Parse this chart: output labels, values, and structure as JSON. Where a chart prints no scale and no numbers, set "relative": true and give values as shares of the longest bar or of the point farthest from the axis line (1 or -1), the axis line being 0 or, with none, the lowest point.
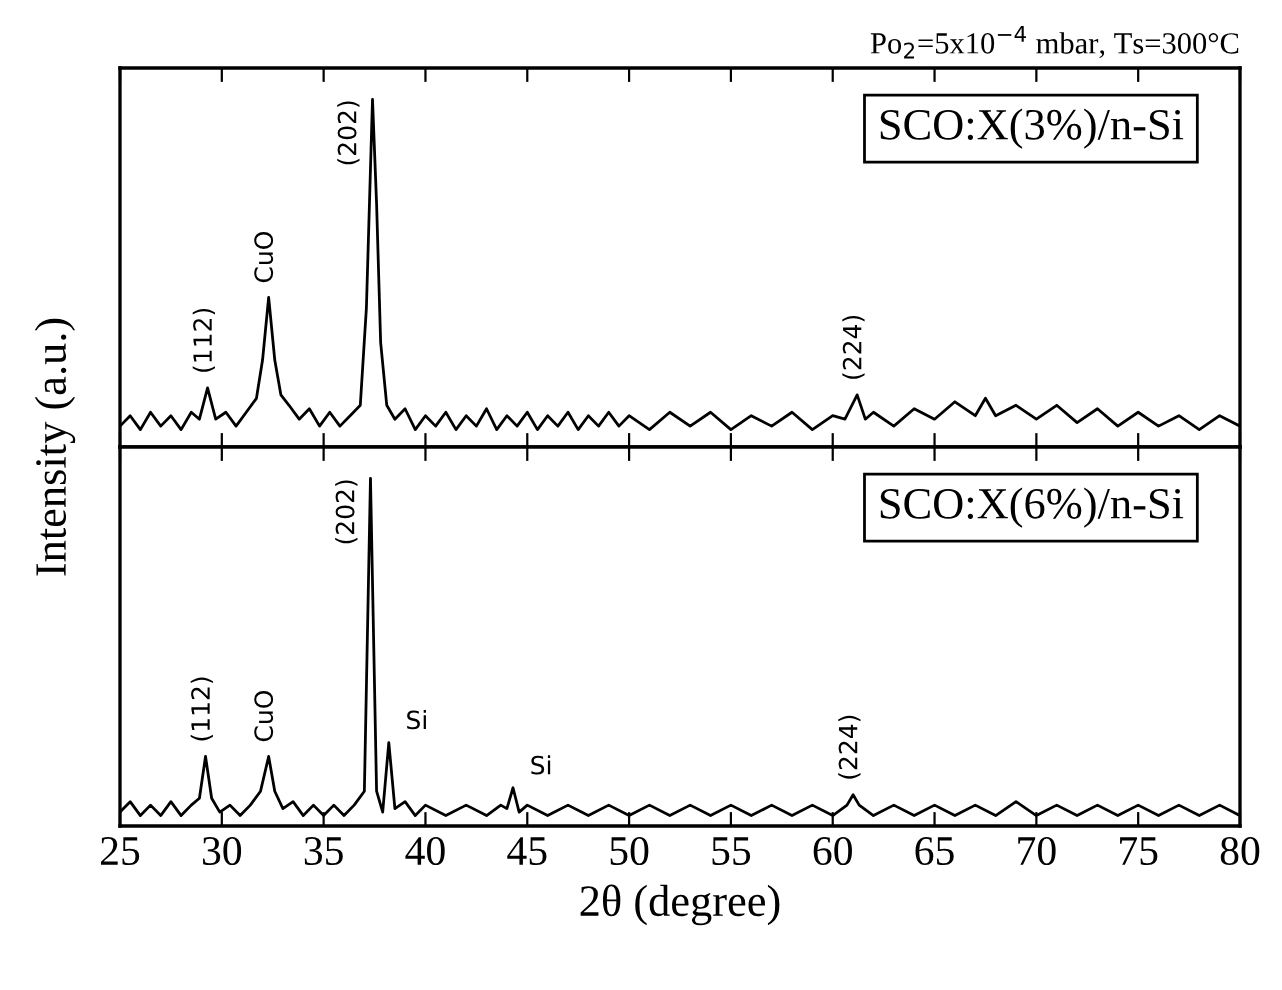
{
  "chart_data": [
    {
      "type": "line",
      "relative": true,
      "title": "Po$_{2}$=5x10$^{−4}$ mbar, Ts=300°C",
      "xlim": [
        25,
        80
      ],
      "xticks": [
        25,
        30,
        35,
        40,
        45,
        50,
        55,
        60,
        65,
        70,
        75,
        80
      ],
      "tick_labels": false,
      "grid": false,
      "x": [
        25,
        25.5,
        26,
        26.5,
        27,
        27.5,
        28,
        28.5,
        28.9,
        29.3,
        29.7,
        30.2,
        30.7,
        31.2,
        31.7,
        32.0,
        32.3,
        32.6,
        32.9,
        33.3,
        33.8,
        34.3,
        34.8,
        35.3,
        35.8,
        36.3,
        36.8,
        37.1,
        37.4,
        37.6,
        37.8,
        38.1,
        38.5,
        39,
        39.5,
        40,
        40.5,
        41,
        41.5,
        42,
        42.5,
        43,
        43.5,
        44,
        44.5,
        45,
        45.5,
        46,
        46.5,
        47,
        47.5,
        48,
        48.5,
        49,
        49.5,
        50,
        51,
        52,
        53,
        54,
        55,
        56,
        57,
        58,
        59,
        60,
        60.6,
        61.2,
        61.6,
        62,
        63,
        64,
        65,
        66,
        67,
        67.5,
        68,
        69,
        70,
        71,
        72,
        73,
        74,
        75,
        76,
        77,
        78,
        79,
        80
      ],
      "series": [
        {
          "color": "#000000",
          "values": [
            0.06,
            0.09,
            0.05,
            0.1,
            0.06,
            0.09,
            0.05,
            0.1,
            0.08,
            0.17,
            0.08,
            0.1,
            0.06,
            0.1,
            0.14,
            0.25,
            0.43,
            0.25,
            0.15,
            0.12,
            0.08,
            0.11,
            0.06,
            0.1,
            0.06,
            0.09,
            0.12,
            0.4,
            1,
            0.7,
            0.3,
            0.12,
            0.08,
            0.11,
            0.05,
            0.09,
            0.06,
            0.1,
            0.05,
            0.09,
            0.06,
            0.11,
            0.05,
            0.09,
            0.06,
            0.1,
            0.05,
            0.09,
            0.06,
            0.1,
            0.05,
            0.09,
            0.06,
            0.1,
            0.06,
            0.09,
            0.05,
            0.1,
            0.06,
            0.1,
            0.05,
            0.09,
            0.06,
            0.1,
            0.05,
            0.09,
            0.08,
            0.15,
            0.08,
            0.1,
            0.06,
            0.11,
            0.08,
            0.13,
            0.09,
            0.14,
            0.09,
            0.12,
            0.08,
            0.12,
            0.07,
            0.11,
            0.06,
            0.1,
            0.06,
            0.09,
            0.05,
            0.09,
            0.06
          ]
        }
      ],
      "annotations": [
        "SCO:X(3%)/n-Si",
        {
          "text": "(112)",
          "x": 29.3,
          "y": 0.17
        },
        {
          "text": "CuO",
          "x": 32.3,
          "y": 0.43
        },
        {
          "text": "(202)",
          "x": 37.4,
          "y": 1
        },
        {
          "text": "(224)",
          "x": 61.2,
          "y": 0.15
        }
      ]
    },
    {
      "type": "line",
      "relative": true,
      "xlabel": "2θ (degree)",
      "ylabel": "Intensity (a.u.)",
      "xlim": [
        25,
        80
      ],
      "xticks": [
        25,
        30,
        35,
        40,
        45,
        50,
        55,
        60,
        65,
        70,
        75,
        80
      ],
      "tick_labels": "x",
      "grid": false,
      "x": [
        25,
        25.5,
        26,
        26.5,
        27,
        27.5,
        28,
        28.5,
        28.9,
        29.2,
        29.5,
        29.9,
        30.4,
        30.9,
        31.4,
        31.9,
        32.3,
        32.6,
        33,
        33.5,
        34,
        34.5,
        35,
        35.5,
        36,
        36.5,
        37.0,
        37.3,
        37.6,
        37.9,
        38.2,
        38.5,
        39,
        39.5,
        40,
        41,
        42,
        43,
        43.7,
        44.0,
        44.3,
        44.6,
        45,
        46,
        47,
        48,
        49,
        50,
        51,
        52,
        53,
        54,
        55,
        56,
        57,
        58,
        59,
        60,
        60.7,
        61,
        61.3,
        62,
        63,
        64,
        65,
        66,
        67,
        68,
        69,
        70,
        71,
        72,
        73,
        74,
        75,
        76,
        77,
        78,
        79,
        80
      ],
      "series": [
        {
          "color": "#000000",
          "values": [
            0.04,
            0.07,
            0.03,
            0.06,
            0.03,
            0.07,
            0.03,
            0.06,
            0.08,
            0.2,
            0.08,
            0.04,
            0.06,
            0.03,
            0.06,
            0.1,
            0.2,
            0.1,
            0.05,
            0.07,
            0.03,
            0.06,
            0.03,
            0.06,
            0.03,
            0.06,
            0.1,
            1,
            0.1,
            0.04,
            0.24,
            0.05,
            0.07,
            0.03,
            0.06,
            0.03,
            0.06,
            0.03,
            0.06,
            0.05,
            0.11,
            0.04,
            0.06,
            0.03,
            0.06,
            0.03,
            0.06,
            0.03,
            0.06,
            0.03,
            0.06,
            0.03,
            0.06,
            0.03,
            0.06,
            0.03,
            0.06,
            0.03,
            0.06,
            0.09,
            0.06,
            0.03,
            0.06,
            0.03,
            0.06,
            0.03,
            0.06,
            0.03,
            0.07,
            0.03,
            0.06,
            0.03,
            0.06,
            0.03,
            0.06,
            0.03,
            0.06,
            0.03,
            0.06,
            0.03
          ]
        }
      ],
      "annotations": [
        "SCO:X(6%)/n-Si",
        {
          "text": "(112)",
          "x": 29.2,
          "y": 0.2
        },
        {
          "text": "CuO",
          "x": 32.3,
          "y": 0.2
        },
        {
          "text": "(202)",
          "x": 37.3,
          "y": 1
        },
        {
          "text": "Si",
          "x": 38.2,
          "y": 0.24
        },
        {
          "text": "Si",
          "x": 44.3,
          "y": 0.11
        },
        {
          "text": "(224)",
          "x": 61,
          "y": 0.09
        }
      ]
    }
  ]
}
